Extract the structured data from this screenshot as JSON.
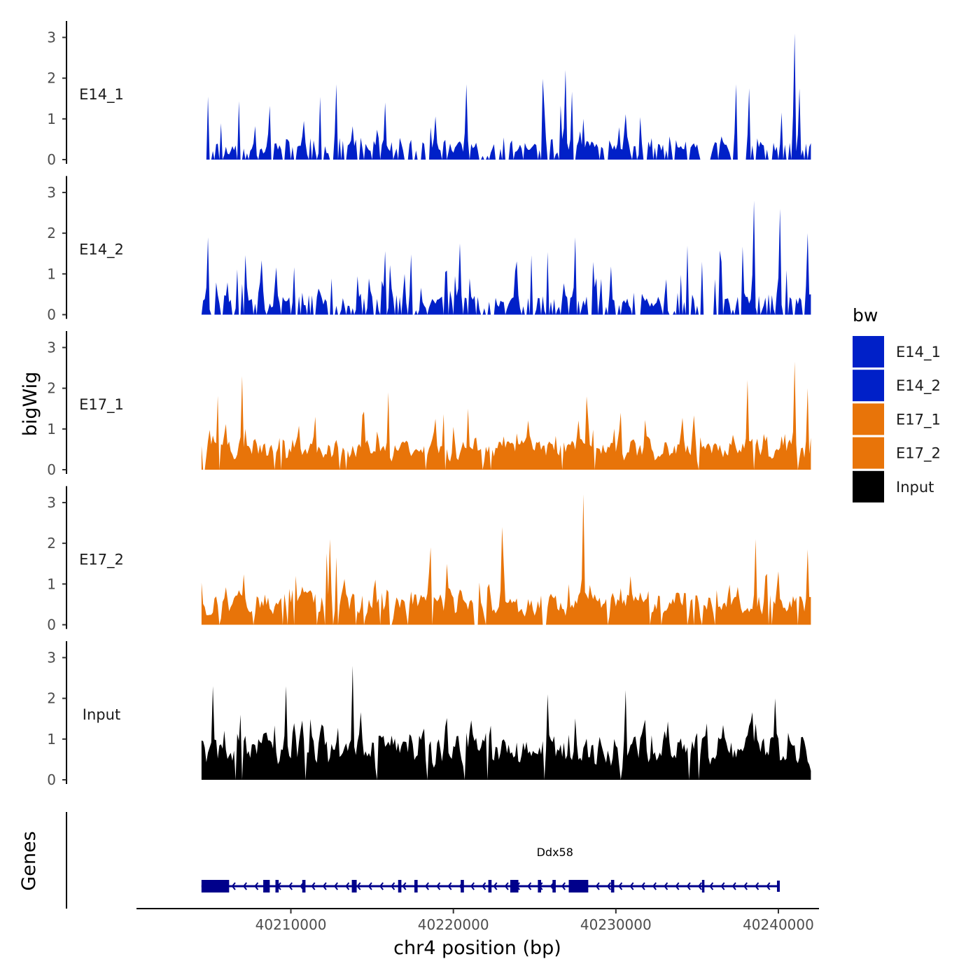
{
  "chart_data": {
    "type": "area",
    "chromosome": "chr4",
    "xlabel": "chr4 position (bp)",
    "ylabel": "bigWig",
    "genes_label": "Genes",
    "xlim": [
      40200500,
      40242500
    ],
    "data_range": [
      40204500,
      40242000
    ],
    "x_ticks": [
      40210000,
      40220000,
      40230000,
      40240000
    ],
    "x_tick_labels": [
      "40210000",
      "40220000",
      "40230000",
      "40240000"
    ],
    "ylim": [
      0,
      3.3
    ],
    "y_ticks": [
      0,
      1,
      2,
      3
    ],
    "y_tick_labels": [
      "0",
      "1",
      "2",
      "3"
    ],
    "legend": {
      "title": "bw",
      "position": "right",
      "entries": [
        {
          "label": "E14_1",
          "color": "#0020C8"
        },
        {
          "label": "E14_2",
          "color": "#0020C8"
        },
        {
          "label": "E17_1",
          "color": "#E87409"
        },
        {
          "label": "E17_2",
          "color": "#E87409"
        },
        {
          "label": "Input",
          "color": "#000000"
        }
      ]
    },
    "series": [
      {
        "name": "E14_1",
        "color": "#0020C8",
        "seed": 11,
        "zero_prob": 0.38,
        "base": 0.45,
        "peak_prob": 0.13,
        "peak_max": 1.5,
        "gaps": [
          [
            40235300,
            40235700
          ]
        ],
        "peaks": [
          [
            40212800,
            1.85
          ],
          [
            40215800,
            1.4
          ],
          [
            40220800,
            1.85
          ],
          [
            40226900,
            2.2
          ],
          [
            40228000,
            1.0
          ],
          [
            40237400,
            1.85
          ],
          [
            40238200,
            1.75
          ],
          [
            40241000,
            3.1
          ],
          [
            40241300,
            1.75
          ]
        ]
      },
      {
        "name": "E14_2",
        "color": "#0020C8",
        "seed": 23,
        "zero_prob": 0.33,
        "base": 0.45,
        "peak_prob": 0.13,
        "peak_max": 1.4,
        "gaps": [
          [
            40235500,
            40236000
          ]
        ],
        "peaks": [
          [
            40204900,
            1.9
          ],
          [
            40220400,
            1.75
          ],
          [
            40227500,
            1.9
          ],
          [
            40238500,
            2.8
          ],
          [
            40240100,
            2.6
          ],
          [
            40241800,
            2.0
          ]
        ]
      },
      {
        "name": "E17_1",
        "color": "#E87409",
        "seed": 37,
        "zero_prob": 0.05,
        "base": 0.7,
        "peak_prob": 0.14,
        "peak_max": 1.3,
        "gaps": [],
        "peaks": [
          [
            40207000,
            2.3
          ],
          [
            40211500,
            1.3
          ],
          [
            40216000,
            1.9
          ],
          [
            40220900,
            1.5
          ],
          [
            40228200,
            1.8
          ],
          [
            40238100,
            2.2
          ],
          [
            40241000,
            2.65
          ],
          [
            40241800,
            2.0
          ]
        ]
      },
      {
        "name": "E17_2",
        "color": "#E87409",
        "seed": 53,
        "zero_prob": 0.1,
        "base": 0.75,
        "peak_prob": 0.14,
        "peak_max": 1.3,
        "gaps": [
          [
            40221300,
            40221500
          ],
          [
            40225500,
            40225700
          ]
        ],
        "peaks": [
          [
            40212400,
            2.1
          ],
          [
            40218600,
            1.9
          ],
          [
            40223000,
            2.4
          ],
          [
            40228000,
            3.2
          ],
          [
            40238600,
            2.1
          ],
          [
            40241800,
            1.85
          ]
        ]
      },
      {
        "name": "Input",
        "color": "#000000",
        "seed": 71,
        "zero_prob": 0.02,
        "base": 1.05,
        "peak_prob": 0.15,
        "peak_max": 1.1,
        "gaps": [],
        "peaks": [
          [
            40205200,
            2.3
          ],
          [
            40209700,
            2.3
          ],
          [
            40213800,
            2.8
          ],
          [
            40225800,
            2.1
          ],
          [
            40230600,
            2.2
          ],
          [
            40239800,
            2.0
          ]
        ]
      }
    ],
    "genes": [
      {
        "name": "Ddx58",
        "strand": "-",
        "start": 40204500,
        "end": 40240000,
        "exons": [
          [
            40204500,
            40206200
          ],
          [
            40208300,
            40208700
          ],
          [
            40209050,
            40209250
          ],
          [
            40210700,
            40210900
          ],
          [
            40213750,
            40214050
          ],
          [
            40216600,
            40216800
          ],
          [
            40217600,
            40217800
          ],
          [
            40220450,
            40220650
          ],
          [
            40222150,
            40222350
          ],
          [
            40223500,
            40224000
          ],
          [
            40225200,
            40225400
          ],
          [
            40226100,
            40226300
          ],
          [
            40227100,
            40228300
          ],
          [
            40229700,
            40229900
          ],
          [
            40235300,
            40235450
          ]
        ]
      }
    ]
  }
}
